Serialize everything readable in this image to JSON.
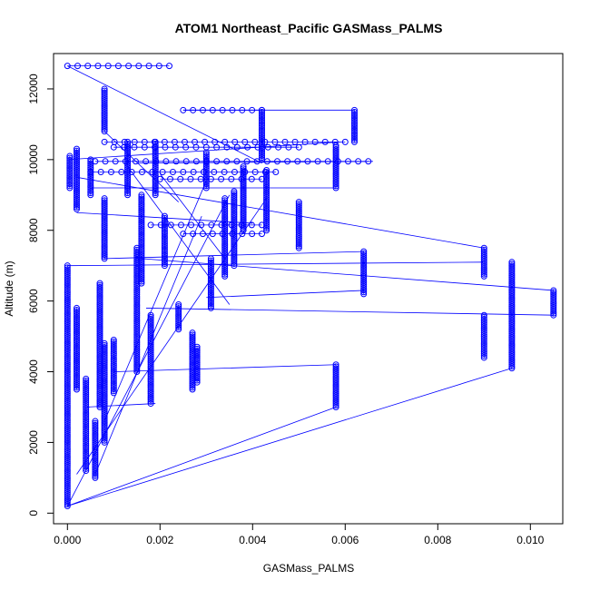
{
  "chart_data": {
    "type": "scatter",
    "title": "ATOM1 Northeast_Pacific GASMass_PALMS",
    "xlabel": "GASMass_PALMS",
    "ylabel": "Altitude (m)",
    "xlim": [
      -0.0003,
      0.0107
    ],
    "ylim": [
      -300,
      13000
    ],
    "xticks": [
      0.0,
      0.002,
      0.004,
      0.006,
      0.008,
      0.01
    ],
    "xtick_labels": [
      "0.000",
      "0.002",
      "0.004",
      "0.006",
      "0.008",
      "0.010"
    ],
    "yticks": [
      0,
      2000,
      4000,
      6000,
      8000,
      10000,
      12000
    ],
    "ytick_labels": [
      "0",
      "2000",
      "4000",
      "6000",
      "8000",
      "10000",
      "12000"
    ],
    "marker": "open-circle",
    "connected": true,
    "color": "#0000ff",
    "segments": [
      {
        "x": 0.0,
        "y0": 200,
        "y1": 7000
      },
      {
        "x": 5e-05,
        "y0": 9200,
        "y1": 10100
      },
      {
        "x": 0.0002,
        "y0": 8600,
        "y1": 10300
      },
      {
        "x": 0.0002,
        "y0": 3500,
        "y1": 5800
      },
      {
        "x": 0.0004,
        "y0": 1200,
        "y1": 3800
      },
      {
        "x": 0.0005,
        "y0": 9000,
        "y1": 10000
      },
      {
        "x": 0.0006,
        "y0": 1000,
        "y1": 2600
      },
      {
        "x": 0.0007,
        "y0": 3000,
        "y1": 6500
      },
      {
        "x": 0.0008,
        "y0": 2000,
        "y1": 4800
      },
      {
        "x": 0.0008,
        "y0": 7200,
        "y1": 8900
      },
      {
        "x": 0.0008,
        "y0": 10800,
        "y1": 12000
      },
      {
        "x": 0.001,
        "y0": 3400,
        "y1": 4900
      },
      {
        "x": 0.0013,
        "y0": 9000,
        "y1": 10500
      },
      {
        "x": 0.0015,
        "y0": 4000,
        "y1": 7500
      },
      {
        "x": 0.0016,
        "y0": 6500,
        "y1": 9000
      },
      {
        "x": 0.0018,
        "y0": 3100,
        "y1": 5600
      },
      {
        "x": 0.0019,
        "y0": 9000,
        "y1": 10500
      },
      {
        "x": 0.0021,
        "y0": 7000,
        "y1": 8400
      },
      {
        "x": 0.0024,
        "y0": 5200,
        "y1": 5900
      },
      {
        "x": 0.0027,
        "y0": 3500,
        "y1": 5100
      },
      {
        "x": 0.0028,
        "y0": 3700,
        "y1": 4700
      },
      {
        "x": 0.003,
        "y0": 9200,
        "y1": 10200
      },
      {
        "x": 0.0031,
        "y0": 5800,
        "y1": 7200
      },
      {
        "x": 0.0034,
        "y0": 6700,
        "y1": 8900
      },
      {
        "x": 0.0036,
        "y0": 7000,
        "y1": 9100
      },
      {
        "x": 0.0038,
        "y0": 8000,
        "y1": 9800
      },
      {
        "x": 0.0042,
        "y0": 10000,
        "y1": 11400
      },
      {
        "x": 0.0043,
        "y0": 8000,
        "y1": 9700
      },
      {
        "x": 0.005,
        "y0": 7500,
        "y1": 8800
      },
      {
        "x": 0.0058,
        "y0": 9200,
        "y1": 10400
      },
      {
        "x": 0.0058,
        "y0": 3000,
        "y1": 4200
      },
      {
        "x": 0.0062,
        "y0": 10500,
        "y1": 11400
      },
      {
        "x": 0.0064,
        "y0": 6200,
        "y1": 7400
      },
      {
        "x": 0.009,
        "y0": 6700,
        "y1": 7500
      },
      {
        "x": 0.009,
        "y0": 4400,
        "y1": 5600
      },
      {
        "x": 0.0096,
        "y0": 4100,
        "y1": 7100
      },
      {
        "x": 0.0105,
        "y0": 5600,
        "y1": 6300
      }
    ],
    "clusters": [
      {
        "x0": 0.0,
        "x1": 0.0022,
        "y": 12650
      },
      {
        "x0": 0.0025,
        "x1": 0.0042,
        "y": 11400
      },
      {
        "x0": 0.0008,
        "x1": 0.006,
        "y": 10500
      },
      {
        "x0": 0.001,
        "x1": 0.005,
        "y": 10350
      },
      {
        "x0": 0.0006,
        "x1": 0.0065,
        "y": 9950
      },
      {
        "x0": 0.0005,
        "x1": 0.0045,
        "y": 9650
      },
      {
        "x0": 0.002,
        "x1": 0.0042,
        "y": 9450
      },
      {
        "x0": 0.0018,
        "x1": 0.0042,
        "y": 8150
      },
      {
        "x0": 0.0025,
        "x1": 0.0042,
        "y": 7900
      }
    ],
    "connectors": [
      [
        0.0,
        200,
        0.0096,
        4100
      ],
      [
        0.0,
        200,
        0.0058,
        3000
      ],
      [
        0.0,
        200,
        0.0035,
        9000
      ],
      [
        0.0,
        12650,
        0.0042,
        9900
      ],
      [
        0.0002,
        9500,
        0.009,
        7500
      ],
      [
        0.0016,
        7200,
        0.0105,
        6300
      ],
      [
        0.0008,
        7200,
        0.0064,
        7400
      ],
      [
        0.003,
        6100,
        0.0064,
        6300
      ],
      [
        0.0017,
        5800,
        0.0105,
        5600
      ],
      [
        0.0008,
        2600,
        0.003,
        9400
      ],
      [
        0.0006,
        1100,
        0.0029,
        8400
      ],
      [
        0.0004,
        3000,
        0.0019,
        3100
      ],
      [
        0.0002,
        1100,
        0.0043,
        8900
      ],
      [
        0.001,
        4000,
        0.0058,
        4200
      ],
      [
        0.0025,
        11400,
        0.0062,
        11400
      ],
      [
        0.0002,
        8500,
        0.004,
        8200
      ],
      [
        0.0,
        10000,
        0.0059,
        10500
      ],
      [
        0.0005,
        9200,
        0.0058,
        9200
      ],
      [
        0.0015,
        9900,
        0.0066,
        9950
      ],
      [
        0.0008,
        10800,
        0.0024,
        8800
      ],
      [
        0.0,
        7000,
        0.009,
        7100
      ],
      [
        0.002,
        9600,
        0.0034,
        7200
      ],
      [
        0.0013,
        9800,
        0.0035,
        5900
      ]
    ]
  }
}
